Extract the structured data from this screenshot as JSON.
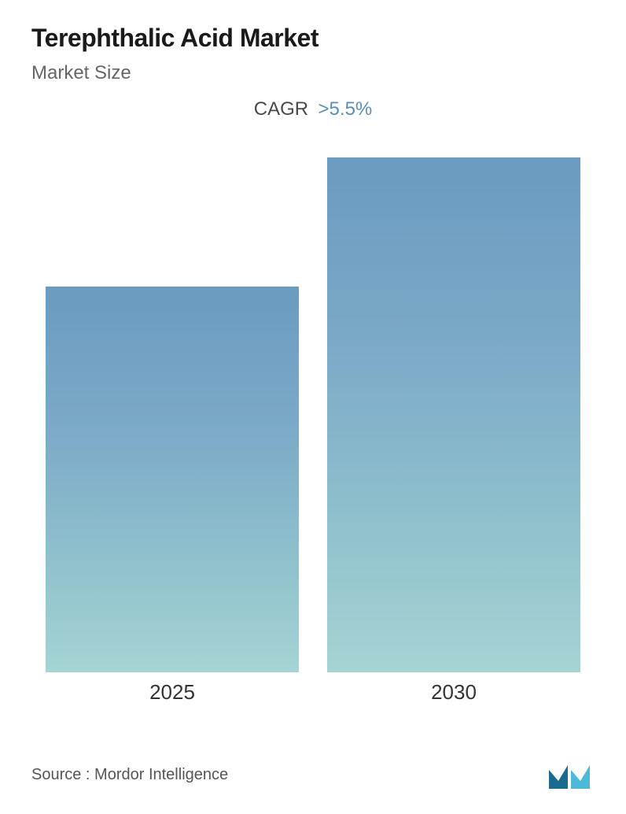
{
  "header": {
    "title": "Terephthalic Acid Market",
    "subtitle": "Market Size",
    "cagr_label": "CAGR",
    "cagr_value": ">5.5%"
  },
  "chart": {
    "type": "bar",
    "categories": [
      "2025",
      "2030"
    ],
    "values": [
      75,
      100
    ],
    "bar_gradient_top": "#6a9bc0",
    "bar_gradient_mid1": "#7ba8c8",
    "bar_gradient_mid2": "#8fc0cc",
    "bar_gradient_bottom": "#a5d4d4",
    "background_color": "#ffffff",
    "title_fontsize": 32,
    "subtitle_fontsize": 24,
    "label_fontsize": 26,
    "cagr_color": "#5a8fb5",
    "title_color": "#1a1a1a",
    "subtitle_color": "#666666",
    "label_color": "#333333"
  },
  "footer": {
    "source_text": "Source :  Mordor Intelligence",
    "logo_color_1": "#1a6b8f",
    "logo_color_2": "#4db8d8"
  }
}
